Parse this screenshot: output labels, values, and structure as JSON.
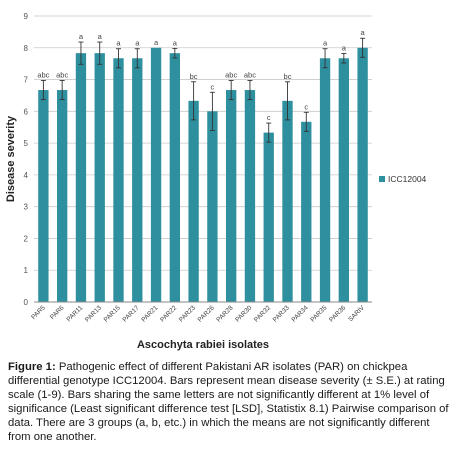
{
  "chart_data": {
    "type": "bar",
    "categories": [
      "PAR5",
      "PAR6",
      "PAR11",
      "PAR13",
      "PAR15",
      "PAR17",
      "PAR21",
      "PAR22",
      "PAR23",
      "PAR26",
      "PAR28",
      "PAR30",
      "PAR32",
      "PAR33",
      "PAR34",
      "PAR35",
      "PAR36",
      "SARIV"
    ],
    "series": [
      {
        "name": "ICC12004",
        "values": [
          6.67,
          6.67,
          7.83,
          7.83,
          7.67,
          7.67,
          8.0,
          7.83,
          6.33,
          6.0,
          6.67,
          6.67,
          5.33,
          6.33,
          5.67,
          7.67,
          7.67,
          8.0
        ],
        "errors": [
          0.3,
          0.3,
          0.35,
          0.35,
          0.3,
          0.3,
          0.0,
          0.15,
          0.6,
          0.6,
          0.3,
          0.3,
          0.3,
          0.6,
          0.3,
          0.3,
          0.15,
          0.3
        ],
        "significance_letters": [
          "abc",
          "abc",
          "a",
          "a",
          "a",
          "a",
          "a",
          "a",
          "bc",
          "c",
          "abc",
          "abc",
          "c",
          "bc",
          "c",
          "a",
          "a",
          "a"
        ],
        "color": "#2e8f9e"
      }
    ],
    "title": "",
    "xlabel": "Ascochyta rabiei isolates",
    "ylabel": "Disease severity",
    "ylim": [
      0,
      9
    ],
    "yticks": [
      "0",
      "1",
      "2",
      "3",
      "4",
      "5",
      "6",
      "7",
      "8",
      "9"
    ],
    "grid": true,
    "legend_position": "right"
  },
  "caption": {
    "label": "Figure 1:",
    "text": " Pathogenic effect of different Pakistani AR isolates (PAR) on chickpea differential genotype ICC12004. Bars represent mean disease severity (± S.E.) at rating scale (1-9). Bars sharing the same letters are not significantly different at 1% level of significance (Least significant difference test [LSD], Statistix 8.1) Pairwise comparison of data. There are 3 groups (a, b, etc.) in which the means are not significantly different from one another."
  }
}
